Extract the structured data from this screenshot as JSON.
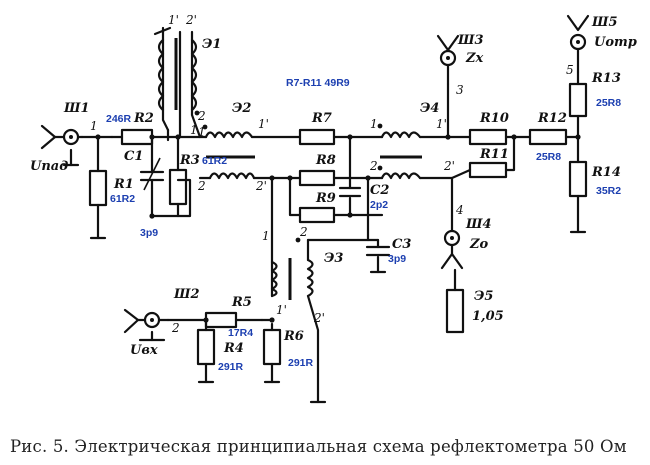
{
  "caption": "Рис. 5. Электрическая принципиальная схема рефлектометра 50 Ом",
  "note": "R7-R11 49R9",
  "connectors": {
    "sh1": "Ш1",
    "sh1_sig": "Uпад",
    "sh2": "Ш2",
    "sh2_sig": "Uвх",
    "sh3": "Ш3",
    "sh3_sig": "Zx",
    "sh4": "Ш4",
    "sh4_sig": "Zo",
    "sh5": "Ш5",
    "sh5_sig": "Uотр"
  },
  "transformers": {
    "e1": "Э1",
    "e2": "Э2",
    "e3": "Э3",
    "e4": "Э4",
    "e5": "Э5",
    "e5_sub": "1,05"
  },
  "resistors": {
    "r1": "R1",
    "r1_val": "61R2",
    "r2": "R2",
    "r2_val": "246R",
    "r3": "R3",
    "r3_val": "61R2",
    "r4": "R4",
    "r4_val": "291R",
    "r5": "R5",
    "r5_val": "17R4",
    "r6": "R6",
    "r6_val": "291R",
    "r7": "R7",
    "r8": "R8",
    "r9": "R9",
    "r10": "R10",
    "r11": "R11",
    "r12": "R12",
    "r12_val": "25R8",
    "r13": "R13",
    "r13_val": "25R8",
    "r14": "R14",
    "r14_val": "35R2"
  },
  "capacitors": {
    "c1": "C1",
    "c1_val": "3p9",
    "c2": "C2",
    "c2_val": "2p2",
    "c3": "C3",
    "c3_val": "3p9"
  },
  "pins": {
    "p_sh1": "1",
    "p_sh2": "2",
    "p_sh3": "3",
    "p_sh4": "4",
    "p_sh5": "5",
    "e1_1p": "1'",
    "e1_2p": "2'",
    "e1_2": "2",
    "e1_1": "1",
    "e2_1": "1",
    "e2_1p": "1'",
    "e2_2": "2",
    "e2_2p": "2'",
    "e3_1": "1",
    "e3_2": "2",
    "e3_1p": "1'",
    "e3_2p": "2'",
    "e4_1": "1",
    "e4_1p": "1'",
    "e4_2": "2",
    "e4_2p": "2'"
  }
}
